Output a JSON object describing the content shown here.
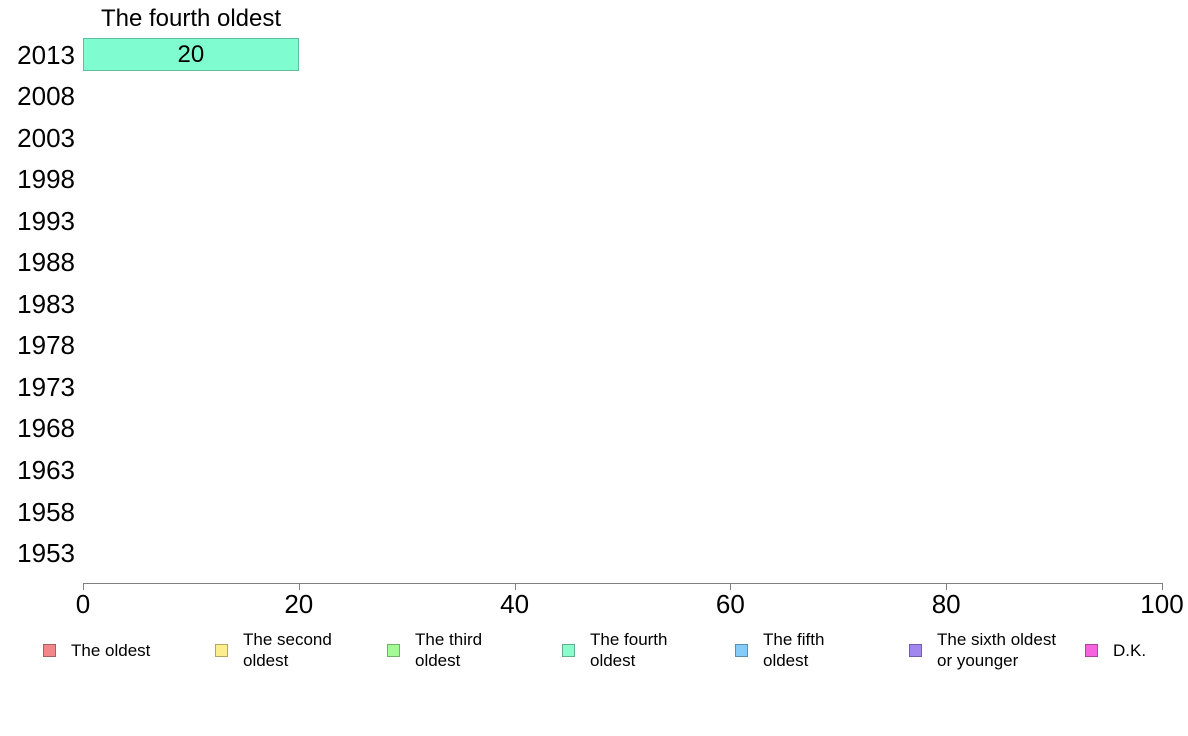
{
  "chart_data": {
    "type": "bar",
    "orientation": "horizontal",
    "title": "The fourth oldest",
    "categories": [
      "2013",
      "2008",
      "2003",
      "1998",
      "1993",
      "1988",
      "1983",
      "1978",
      "1973",
      "1968",
      "1963",
      "1958",
      "1953"
    ],
    "values": [
      20,
      null,
      null,
      null,
      null,
      null,
      null,
      null,
      null,
      null,
      null,
      null,
      null
    ],
    "bar_labels": [
      "20",
      "",
      "",
      "",
      "",
      "",
      "",
      "",
      "",
      "",
      "",
      "",
      ""
    ],
    "bar_color": "#7ffdd0",
    "xlabel": "",
    "ylabel": "",
    "xlim": [
      0,
      100
    ],
    "xticks": [
      "0",
      "20",
      "40",
      "60",
      "80",
      "100"
    ],
    "grid": false,
    "legend_position": "bottom",
    "legend": [
      {
        "label": "The oldest",
        "color": "#f28789"
      },
      {
        "label": "The second\noldest",
        "color": "#fcee8d"
      },
      {
        "label": "The third\noldest",
        "color": "#a3fb96"
      },
      {
        "label": "The fourth\noldest",
        "color": "#8bfccb"
      },
      {
        "label": "The fifth\noldest",
        "color": "#85ccf8"
      },
      {
        "label": "The sixth oldest\nor younger",
        "color": "#a188ee"
      },
      {
        "label": "D.K.",
        "color": "#f563dd"
      }
    ]
  }
}
